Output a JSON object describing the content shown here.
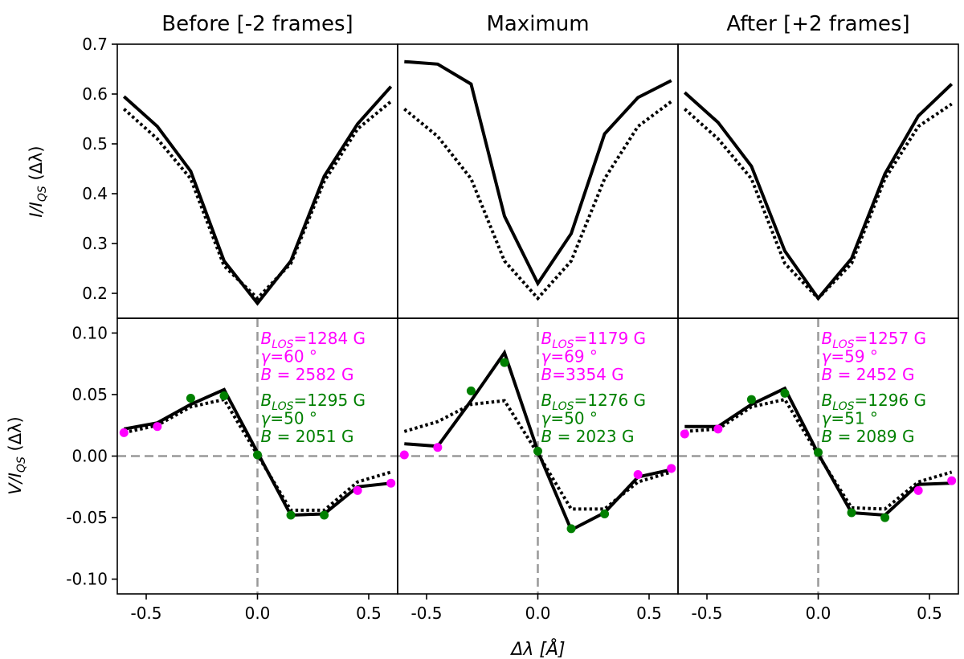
{
  "colors": {
    "observed": "#000000",
    "fit": "#000000",
    "magenta": "#ff00ff",
    "green": "#008000",
    "reference": "#999999"
  },
  "chart_data": {
    "type": "line",
    "xlabel": "Δλ [Å]",
    "ylabel_top_main": "I/I",
    "ylabel_top_sub": "QS",
    "ylabel_top_tail": " (Δλ)",
    "ylabel_bottom_main": "V/I",
    "ylabel_bottom_sub": "QS",
    "ylabel_bottom_tail": " (Δλ)",
    "xlim": [
      -0.63,
      0.63
    ],
    "ylim_top": [
      0.15,
      0.7
    ],
    "ylim_bottom": [
      -0.112,
      0.112
    ],
    "x_ticks": [
      "-0.5",
      "0.0",
      "0.5"
    ],
    "x_tick_values": [
      -0.5,
      0.0,
      0.5
    ],
    "y_ticks_top": [
      "0.2",
      "0.3",
      "0.4",
      "0.5",
      "0.6",
      "0.7"
    ],
    "y_tick_values_top": [
      0.2,
      0.3,
      0.4,
      0.5,
      0.6,
      0.7
    ],
    "y_ticks_bottom": [
      "-0.10",
      "-0.05",
      "0.00",
      "0.05",
      "0.10"
    ],
    "y_tick_values_bottom": [
      -0.1,
      -0.05,
      0.0,
      0.05,
      0.1
    ],
    "x": [
      -0.6,
      -0.45,
      -0.3,
      -0.15,
      0.0,
      0.15,
      0.3,
      0.45,
      0.6
    ],
    "panels": [
      {
        "title": "Before [-2 frames]",
        "intensity_observed": [
          0.595,
          0.535,
          0.445,
          0.265,
          0.18,
          0.265,
          0.435,
          0.54,
          0.615
        ],
        "intensity_fit": [
          0.57,
          0.51,
          0.43,
          0.255,
          0.19,
          0.26,
          0.425,
          0.53,
          0.585
        ],
        "stokesv_observed": [
          0.022,
          0.027,
          0.042,
          0.054,
          0.003,
          -0.048,
          -0.047,
          -0.025,
          -0.022
        ],
        "stokesv_fit": [
          0.019,
          0.025,
          0.04,
          0.046,
          0.001,
          -0.044,
          -0.044,
          -0.021,
          -0.013
        ],
        "magenta_points": [
          [
            -0.6,
            0.019
          ],
          [
            -0.45,
            0.024
          ],
          [
            0.45,
            -0.028
          ],
          [
            0.6,
            -0.022
          ]
        ],
        "green_points": [
          [
            -0.3,
            0.047
          ],
          [
            -0.15,
            0.049
          ],
          [
            0.0,
            0.001
          ],
          [
            0.15,
            -0.048
          ],
          [
            0.3,
            -0.048
          ]
        ],
        "annot_magenta": [
          {
            "sym": "B",
            "sub": "LOS",
            "text": "=1284 G"
          },
          {
            "sym": "γ",
            "sub": "",
            "text": "=60 °"
          },
          {
            "sym": "B",
            "sub": "",
            "text": " = 2582 G"
          }
        ],
        "annot_green": [
          {
            "sym": "B",
            "sub": "LOS",
            "text": "=1295 G"
          },
          {
            "sym": "γ",
            "sub": "",
            "text": "=50 °"
          },
          {
            "sym": "B",
            "sub": "",
            "text": " = 2051 G"
          }
        ]
      },
      {
        "title": "Maximum",
        "intensity_observed": [
          0.665,
          0.66,
          0.62,
          0.355,
          0.22,
          0.32,
          0.52,
          0.593,
          0.627
        ],
        "intensity_fit": [
          0.57,
          0.515,
          0.43,
          0.265,
          0.19,
          0.265,
          0.43,
          0.535,
          0.585
        ],
        "stokesv_observed": [
          0.01,
          0.008,
          0.045,
          0.084,
          0.004,
          -0.06,
          -0.046,
          -0.017,
          -0.011
        ],
        "stokesv_fit": [
          0.02,
          0.028,
          0.042,
          0.045,
          0.002,
          -0.043,
          -0.043,
          -0.021,
          -0.013
        ],
        "magenta_points": [
          [
            -0.6,
            0.001
          ],
          [
            -0.45,
            0.007
          ],
          [
            0.45,
            -0.015
          ],
          [
            0.6,
            -0.01
          ]
        ],
        "green_points": [
          [
            -0.3,
            0.053
          ],
          [
            -0.15,
            0.076
          ],
          [
            0.0,
            0.004
          ],
          [
            0.15,
            -0.059
          ],
          [
            0.3,
            -0.047
          ]
        ],
        "annot_magenta": [
          {
            "sym": "B",
            "sub": "LOS",
            "text": "=1179 G"
          },
          {
            "sym": "γ",
            "sub": "",
            "text": "=69 °"
          },
          {
            "sym": "B",
            "sub": "",
            "text": "=3354 G"
          }
        ],
        "annot_green": [
          {
            "sym": "B",
            "sub": "LOS",
            "text": "=1276 G"
          },
          {
            "sym": "γ",
            "sub": "",
            "text": "=50 °"
          },
          {
            "sym": "B",
            "sub": "",
            "text": " = 2023 G"
          }
        ]
      },
      {
        "title": "After [+2 frames]",
        "intensity_observed": [
          0.603,
          0.543,
          0.455,
          0.285,
          0.19,
          0.27,
          0.44,
          0.556,
          0.62
        ],
        "intensity_fit": [
          0.57,
          0.51,
          0.43,
          0.26,
          0.19,
          0.26,
          0.43,
          0.535,
          0.58
        ],
        "stokesv_observed": [
          0.024,
          0.024,
          0.042,
          0.055,
          0.002,
          -0.046,
          -0.048,
          -0.023,
          -0.022
        ],
        "stokesv_fit": [
          0.02,
          0.022,
          0.04,
          0.046,
          0.001,
          -0.042,
          -0.043,
          -0.021,
          -0.013
        ],
        "magenta_points": [
          [
            -0.6,
            0.018
          ],
          [
            -0.45,
            0.022
          ],
          [
            0.45,
            -0.028
          ],
          [
            0.6,
            -0.02
          ]
        ],
        "green_points": [
          [
            -0.3,
            0.046
          ],
          [
            -0.15,
            0.051
          ],
          [
            0.0,
            0.003
          ],
          [
            0.15,
            -0.046
          ],
          [
            0.3,
            -0.05
          ]
        ],
        "annot_magenta": [
          {
            "sym": "B",
            "sub": "LOS",
            "text": "=1257 G"
          },
          {
            "sym": "γ",
            "sub": "",
            "text": "=59 °"
          },
          {
            "sym": "B",
            "sub": "",
            "text": " = 2452 G"
          }
        ],
        "annot_green": [
          {
            "sym": "B",
            "sub": "LOS",
            "text": "=1296 G"
          },
          {
            "sym": "γ",
            "sub": "",
            "text": "=51 °"
          },
          {
            "sym": "B",
            "sub": "",
            "text": " = 2089 G"
          }
        ]
      }
    ]
  }
}
